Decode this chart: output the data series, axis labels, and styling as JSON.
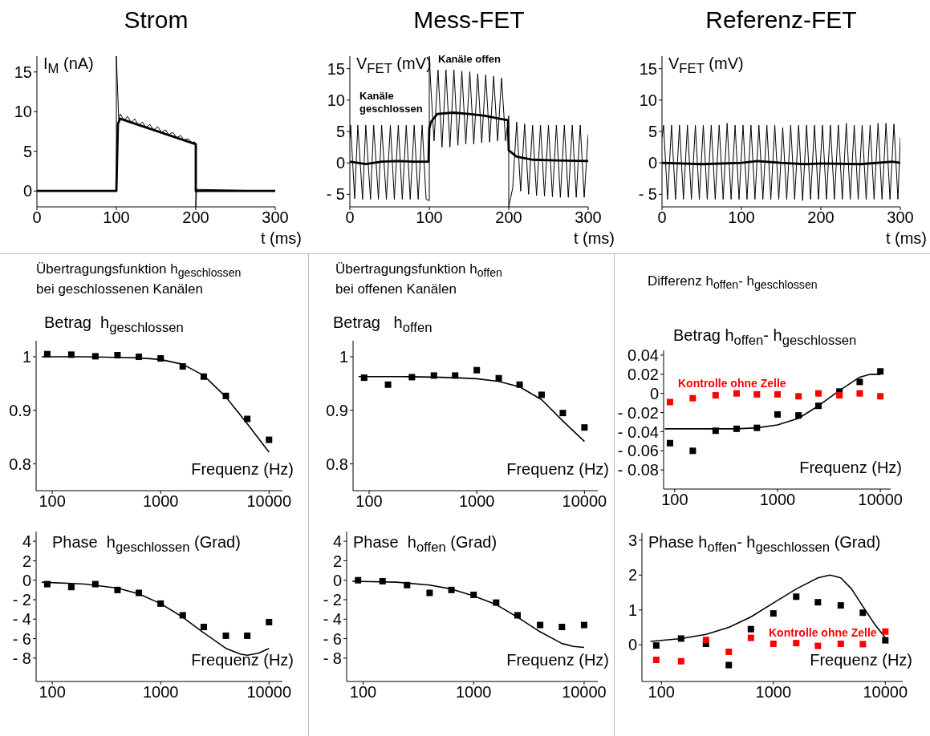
{
  "chart_data": [
    {
      "type": "line",
      "title": "Strom",
      "ylabel": "I$_{M}$ (nA)",
      "xlabel": "t (ms)",
      "xlim": [
        0,
        300
      ],
      "xticks": [
        0,
        100,
        200,
        300
      ],
      "ylim": [
        -2,
        17
      ],
      "yticks": [
        0,
        5,
        10,
        15
      ],
      "series": [
        {
          "color": "#000000",
          "x": [
            0,
            50,
            100,
            100,
            103,
            105,
            110,
            114,
            119,
            123,
            128,
            133,
            137,
            142,
            147,
            152,
            157,
            162,
            166,
            171,
            176,
            181,
            185,
            190,
            195,
            198,
            200,
            200,
            201,
            250,
            300
          ],
          "values": [
            0,
            0,
            0,
            17,
            9.0,
            9.7,
            8.9,
            9.4,
            8.6,
            9.1,
            8.3,
            8.7,
            8.0,
            8.4,
            7.7,
            8.1,
            7.4,
            7.7,
            7.1,
            7.4,
            6.7,
            7.0,
            6.4,
            6.6,
            6.1,
            6.2,
            6.0,
            -2,
            0.2,
            0.1,
            0
          ]
        },
        {
          "color": "#000000",
          "x": [
            0,
            100,
            102,
            105,
            200,
            200,
            300
          ],
          "values": [
            0,
            0,
            8.5,
            9.1,
            5.9,
            0,
            0
          ]
        }
      ]
    },
    {
      "type": "line",
      "title": "Mess-FET",
      "ylabel": "V$_{FET}$ (mV)",
      "xlabel": "t (ms)",
      "xlim": [
        0,
        300
      ],
      "xticks": [
        0,
        100,
        200,
        300
      ],
      "ylim": [
        -7,
        17
      ],
      "yticks": [
        {
          "value": -5,
          "label": "- 5"
        },
        0,
        5,
        10,
        15
      ],
      "annotations": [
        "Kanäle offen",
        "Kanäle\ngeschlossen"
      ],
      "series": [
        {
          "color": "#000000",
          "x": [
            0,
            1,
            6,
            10,
            16,
            20,
            26,
            30,
            36,
            40,
            46,
            51,
            56,
            61,
            66,
            71,
            76,
            81,
            86,
            91,
            96,
            100,
            100,
            102,
            106,
            111,
            116,
            121,
            126,
            131,
            136,
            141,
            146,
            151,
            156,
            161,
            166,
            171,
            176,
            181,
            186,
            191,
            196,
            200,
            200,
            205,
            210,
            215,
            220,
            225,
            230,
            235,
            240,
            245,
            250,
            255,
            260,
            265,
            270,
            275,
            280,
            285,
            290,
            295,
            300
          ],
          "values": [
            4,
            6,
            -5.7,
            6,
            -5.8,
            6,
            -5.8,
            6,
            -5.8,
            6,
            -5.8,
            6,
            -5.8,
            6,
            -5.8,
            6,
            -5.8,
            6,
            -5.8,
            6,
            -5.8,
            -6,
            17,
            12,
            3.5,
            14.8,
            2.5,
            14.8,
            2.5,
            14.8,
            2.8,
            14.6,
            3,
            14.5,
            3,
            14.2,
            3.2,
            14,
            3.3,
            13.8,
            3.5,
            13.5,
            3.5,
            7.5,
            -7,
            -4,
            6.5,
            -4.5,
            6.2,
            -5,
            6,
            -5.2,
            6,
            -5.3,
            6,
            -5.4,
            6,
            -5.5,
            6,
            -5.5,
            6,
            -5.5,
            6,
            -5.5,
            4.5
          ]
        },
        {
          "color": "#000000",
          "x": [
            0,
            20,
            40,
            60,
            80,
            99,
            100,
            102,
            110,
            130,
            150,
            170,
            190,
            199,
            200,
            202,
            210,
            230,
            260,
            300
          ],
          "values": [
            0.2,
            -0.2,
            0.2,
            0.3,
            0.2,
            0.2,
            5.5,
            6.5,
            7.8,
            8,
            7.8,
            7.5,
            7,
            6.8,
            2,
            1.8,
            1,
            0.5,
            0.4,
            0.3
          ]
        }
      ]
    },
    {
      "type": "line",
      "title": "Referenz-FET",
      "ylabel": "V$_{FET}$ (mV)",
      "xlabel": "t (ms)",
      "xlim": [
        0,
        300
      ],
      "xticks": [
        0,
        100,
        200,
        300
      ],
      "ylim": [
        -7,
        17
      ],
      "yticks": [
        {
          "value": -5,
          "label": "- 5"
        },
        0,
        5,
        10,
        15
      ],
      "series": [
        {
          "color": "#000000",
          "x": [
            0,
            2,
            7,
            12,
            17,
            22,
            27,
            32,
            37,
            42,
            47,
            52,
            57,
            62,
            67,
            72,
            77,
            82,
            87,
            92,
            97,
            102,
            107,
            112,
            117,
            122,
            127,
            132,
            137,
            142,
            147,
            152,
            157,
            162,
            167,
            172,
            177,
            182,
            187,
            192,
            197,
            202,
            207,
            212,
            217,
            222,
            227,
            232,
            237,
            242,
            247,
            252,
            257,
            262,
            267,
            272,
            277,
            282,
            287,
            292,
            297,
            300
          ],
          "values": [
            4,
            6,
            -5.8,
            6,
            -5.8,
            6,
            -5.8,
            6,
            -5.8,
            6,
            -5.8,
            6,
            -5.8,
            6,
            -5.8,
            6,
            -5.8,
            6.3,
            -5.8,
            6,
            -5.8,
            6,
            -5.8,
            6,
            -5.8,
            6,
            -5.8,
            6,
            -5.8,
            6,
            -5.8,
            5.6,
            -5.8,
            6,
            -5.8,
            6,
            -6,
            6,
            -5.8,
            6,
            -5.8,
            6,
            -5.8,
            6,
            -5.8,
            6,
            -5.8,
            6.3,
            -5.8,
            6,
            -5.8,
            6,
            -5.8,
            6,
            -5.8,
            6.3,
            -5.8,
            6.3,
            -5.8,
            6.2,
            -5.8,
            4
          ]
        },
        {
          "color": "#000000",
          "x": [
            0,
            50,
            100,
            120,
            150,
            180,
            200,
            250,
            290,
            300
          ],
          "values": [
            0,
            -0.2,
            0,
            0.3,
            0,
            -0.2,
            -0.1,
            -0.2,
            0.2,
            0
          ]
        }
      ]
    },
    {
      "type": "line",
      "title": "Übertragungsfunktion h$_{geschlossen}$\nbei geschlossenen Kanälen",
      "ylabel": "Betrag  h$_{geschlossen}$",
      "xlabel": "Frequenz (Hz)",
      "log": "x",
      "xlim": [
        71,
        13300
      ],
      "xticks": [
        100,
        1000,
        10000
      ],
      "ylim": [
        0.75,
        1.03
      ],
      "yticks": [
        0.8,
        0.9,
        1
      ],
      "series": [
        {
          "color": "#000000",
          "x": [
            80,
            200,
            400,
            630,
            1000,
            1600,
            2500,
            4000,
            6300,
            10000
          ],
          "values": [
            1.0,
            1.0,
            0.999,
            0.998,
            0.995,
            0.986,
            0.965,
            0.925,
            0.875,
            0.822
          ]
        },
        {
          "type": "scatter",
          "marker": "square",
          "color": "#000000",
          "x": [
            90,
            150,
            250,
            400,
            630,
            1000,
            1600,
            2500,
            4000,
            6300,
            10000
          ],
          "values": [
            1.005,
            1.004,
            1.001,
            1.003,
            1.0,
            0.997,
            0.982,
            0.963,
            0.927,
            0.884,
            0.845
          ]
        }
      ]
    },
    {
      "type": "line",
      "title": "Übertragungsfunktion h$_{offen}$\nbei offenen Kanälen",
      "ylabel": "Betrag   h$_{offen}$",
      "xlabel": "Frequenz (Hz)",
      "log": "x",
      "xlim": [
        71,
        13300
      ],
      "xticks": [
        100,
        1000,
        10000
      ],
      "ylim": [
        0.75,
        1.03
      ],
      "yticks": [
        0.8,
        0.9,
        1
      ],
      "series": [
        {
          "color": "#000000",
          "x": [
            80,
            200,
            400,
            630,
            1000,
            1600,
            2500,
            4000,
            6300,
            10000
          ],
          "values": [
            0.963,
            0.963,
            0.962,
            0.961,
            0.959,
            0.954,
            0.944,
            0.92,
            0.88,
            0.842
          ]
        },
        {
          "type": "scatter",
          "marker": "square",
          "color": "#000000",
          "x": [
            90,
            150,
            250,
            400,
            630,
            1000,
            1600,
            2500,
            4000,
            6300,
            10000
          ],
          "values": [
            0.961,
            0.948,
            0.962,
            0.965,
            0.965,
            0.975,
            0.96,
            0.948,
            0.929,
            0.895,
            0.868
          ]
        }
      ]
    },
    {
      "type": "line",
      "title": "Differenz h$_{offen}$- h$_{geschlossen}$",
      "ylabel": "Betrag h$_{offen}$- h$_{geschlossen}$",
      "xlabel": "Frequenz (Hz)",
      "log": "x",
      "xlim": [
        78,
        12600
      ],
      "xticks": [
        100,
        1000,
        10000
      ],
      "ylim": [
        -0.1,
        0.045
      ],
      "yticks": [
        {
          "value": -0.08,
          "label": "- 0.08"
        },
        {
          "value": -0.06,
          "label": "- 0.06"
        },
        {
          "value": -0.04,
          "label": "- 0.04"
        },
        {
          "value": -0.02,
          "label": "- 0.02"
        },
        0,
        0.02,
        0.04
      ],
      "series": [
        {
          "color": "#000000",
          "x": [
            80,
            400,
            630,
            1000,
            1600,
            2500,
            4000,
            6300,
            8000,
            10000
          ],
          "values": [
            -0.037,
            -0.037,
            -0.036,
            -0.033,
            -0.026,
            -0.013,
            0.003,
            0.017,
            0.02,
            0.02
          ]
        },
        {
          "type": "scatter",
          "marker": "square",
          "color": "#000000",
          "x": [
            90,
            150,
            250,
            400,
            630,
            1000,
            1600,
            2500,
            4000,
            6300,
            10000
          ],
          "values": [
            -0.052,
            -0.06,
            -0.039,
            -0.037,
            -0.036,
            -0.022,
            -0.023,
            -0.013,
            0.002,
            0.012,
            0.023
          ]
        },
        {
          "type": "scatter",
          "marker": "square",
          "name": "Kontrolle ohne Zelle",
          "color": "#ff0000",
          "x": [
            90,
            150,
            250,
            400,
            630,
            1000,
            1600,
            2500,
            4000,
            6300,
            10000
          ],
          "values": [
            -0.009,
            -0.005,
            -0.002,
            0.0,
            -0.001,
            -0.001,
            -0.003,
            0.0,
            -0.002,
            0.0,
            -0.003
          ]
        }
      ]
    },
    {
      "type": "line",
      "ylabel": "Phase  h$_{geschlossen}$ (Grad)",
      "xlabel": "Frequenz (Hz)",
      "log": "x",
      "xlim": [
        71,
        13300
      ],
      "xticks": [
        100,
        1000,
        10000
      ],
      "ylim": [
        -10.4,
        5
      ],
      "yticks": [
        {
          "value": -8,
          "label": "- 8"
        },
        {
          "value": -6,
          "label": "- 6"
        },
        {
          "value": -4,
          "label": "- 4"
        },
        {
          "value": -2,
          "label": "- 2"
        },
        0,
        2,
        4
      ],
      "series": [
        {
          "color": "#000000",
          "x": [
            80,
            200,
            400,
            630,
            1000,
            1600,
            2500,
            4000,
            5500,
            6300,
            8000,
            10000
          ],
          "values": [
            -0.2,
            -0.4,
            -0.8,
            -1.4,
            -2.4,
            -3.8,
            -5.4,
            -7.0,
            -7.6,
            -7.7,
            -7.5,
            -7.0
          ]
        },
        {
          "type": "scatter",
          "marker": "square",
          "color": "#000000",
          "x": [
            90,
            150,
            250,
            400,
            630,
            1000,
            1600,
            2500,
            4000,
            6300,
            10000
          ],
          "values": [
            -0.4,
            -0.7,
            -0.4,
            -1.0,
            -1.3,
            -2.4,
            -3.6,
            -4.8,
            -5.7,
            -5.7,
            -4.3
          ]
        }
      ]
    },
    {
      "type": "line",
      "ylabel": "Phase  h$_{offen}$ (Grad)",
      "xlabel": "Frequenz (Hz)",
      "log": "x",
      "xlim": [
        71,
        13300
      ],
      "xticks": [
        100,
        1000,
        10000
      ],
      "ylim": [
        -10.4,
        5
      ],
      "yticks": [
        {
          "value": -8,
          "label": "- 8"
        },
        {
          "value": -6,
          "label": "- 6"
        },
        {
          "value": -4,
          "label": "- 4"
        },
        {
          "value": -2,
          "label": "- 2"
        },
        0,
        2,
        4
      ],
      "series": [
        {
          "color": "#000000",
          "x": [
            80,
            200,
            400,
            630,
            1000,
            1600,
            2500,
            4000,
            6300,
            8000,
            10000
          ],
          "values": [
            -0.1,
            -0.2,
            -0.5,
            -0.9,
            -1.6,
            -2.5,
            -3.8,
            -5.3,
            -6.5,
            -6.8,
            -6.9
          ]
        },
        {
          "type": "scatter",
          "marker": "square",
          "color": "#000000",
          "x": [
            90,
            150,
            250,
            400,
            630,
            1000,
            1600,
            2500,
            4000,
            6300,
            10000
          ],
          "values": [
            0.0,
            -0.1,
            -0.5,
            -1.3,
            -1.0,
            -1.5,
            -2.3,
            -3.6,
            -4.6,
            -4.8,
            -4.6
          ]
        }
      ]
    },
    {
      "type": "line",
      "ylabel": "Phase h$_{offen}$- h$_{geschlossen}$ (Grad)",
      "xlabel": "Frequenz (Hz)",
      "log": "x",
      "xlim": [
        67,
        14300
      ],
      "xticks": [
        100,
        1000,
        10000
      ],
      "ylim": [
        -1.05,
        3.2
      ],
      "yticks": [
        0,
        1,
        2,
        3
      ],
      "series": [
        {
          "color": "#000000",
          "x": [
            80,
            150,
            250,
            400,
            630,
            1000,
            1600,
            2500,
            3200,
            4000,
            5000,
            6300,
            8000,
            10000
          ],
          "values": [
            0.1,
            0.18,
            0.3,
            0.5,
            0.8,
            1.2,
            1.6,
            1.92,
            2.0,
            1.92,
            1.6,
            1.1,
            0.6,
            0.2
          ]
        },
        {
          "type": "scatter",
          "marker": "square",
          "color": "#000000",
          "x": [
            90,
            150,
            250,
            400,
            630,
            1000,
            1600,
            2500,
            4000,
            6300,
            10000
          ],
          "values": [
            -0.02,
            0.18,
            0.03,
            -0.58,
            0.45,
            0.9,
            1.38,
            1.22,
            1.13,
            0.92,
            0.13
          ]
        },
        {
          "type": "scatter",
          "marker": "square",
          "name": "Kontrolle ohne Zelle",
          "color": "#ff0000",
          "x": [
            90,
            150,
            250,
            400,
            630,
            1000,
            1600,
            2500,
            4000,
            6300,
            10000
          ],
          "values": [
            -0.43,
            -0.47,
            0.14,
            -0.2,
            0.2,
            0.03,
            0.05,
            -0.03,
            0.03,
            0.02,
            0.38
          ]
        }
      ]
    }
  ]
}
